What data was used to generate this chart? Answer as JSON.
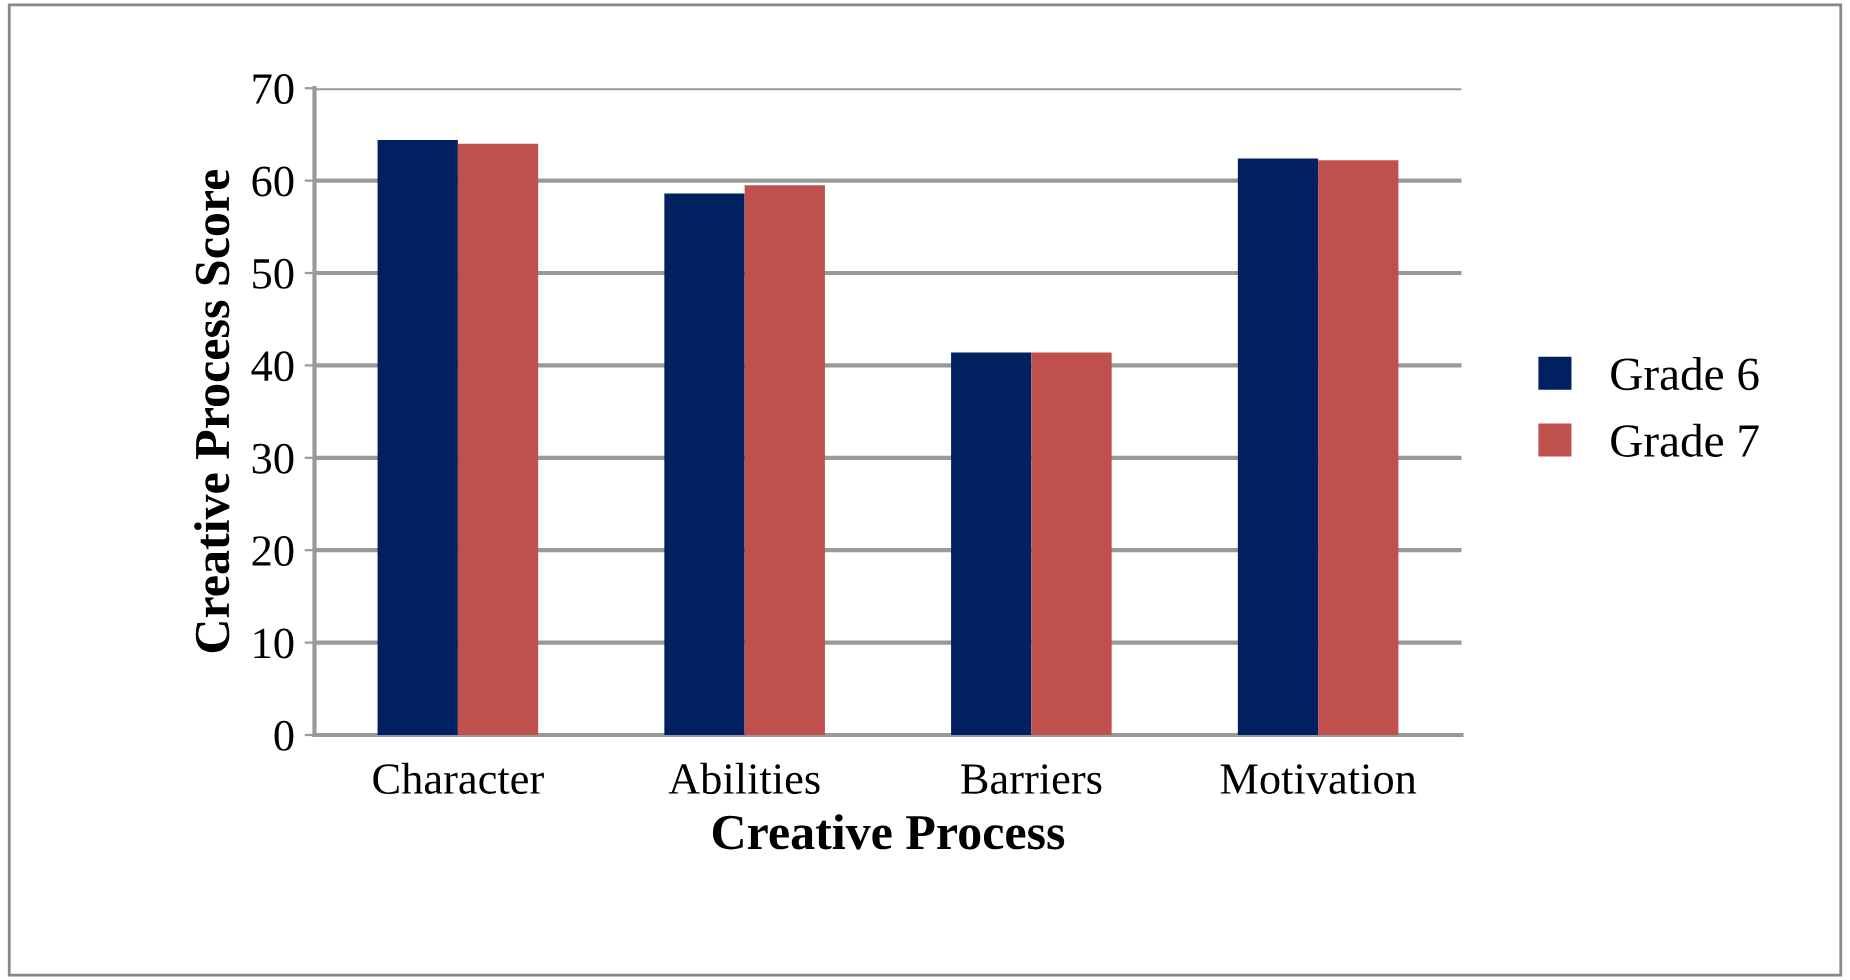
{
  "chart_data": {
    "type": "bar",
    "xlabel": "Creative Process",
    "ylabel": "Creative Process Score",
    "categories": [
      "Character",
      "Abilities",
      "Barriers",
      "Motivation"
    ],
    "series": [
      {
        "name": "Grade 6",
        "color": "#002060",
        "values": [
          64.4,
          58.6,
          41.4,
          62.4
        ]
      },
      {
        "name": "Grade 7",
        "color": "#c0504d",
        "values": [
          64.0,
          59.5,
          41.4,
          62.2
        ]
      }
    ],
    "ylim": [
      0,
      70
    ],
    "yticks": [
      0,
      10,
      20,
      30,
      40,
      50,
      60,
      70
    ],
    "grid": "y",
    "legend": "right"
  }
}
